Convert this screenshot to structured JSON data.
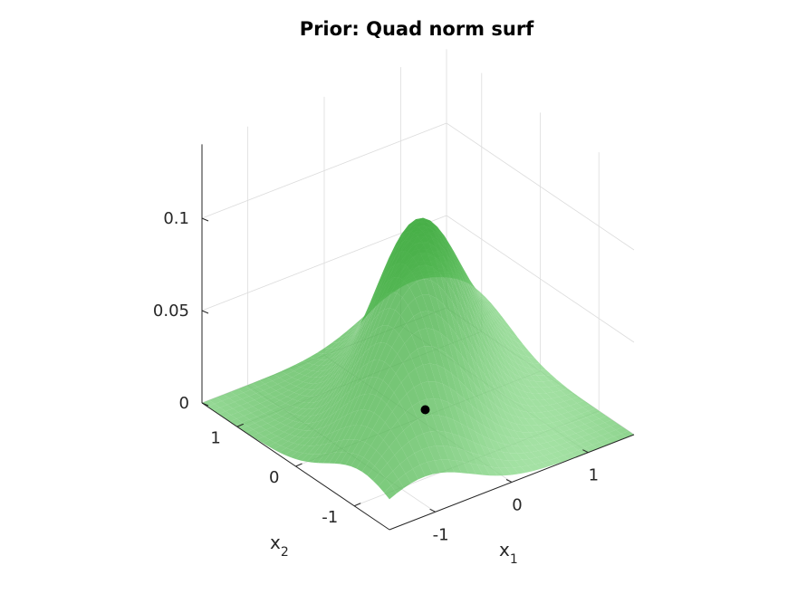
{
  "chart_data": {
    "type": "surface3d",
    "title": "Prior: Quad norm surf",
    "xlabel": "x",
    "xlabel_sub": "1",
    "ylabel": "x",
    "ylabel_sub": "2",
    "zlabel": "",
    "x_ticks": [
      {
        "value": -1,
        "label": "-1"
      },
      {
        "value": 0,
        "label": "0"
      },
      {
        "value": 1,
        "label": "1"
      }
    ],
    "y_ticks": [
      {
        "value": -1,
        "label": "-1"
      },
      {
        "value": 0,
        "label": "0"
      },
      {
        "value": 1,
        "label": "1"
      }
    ],
    "z_ticks": [
      {
        "value": 0,
        "label": "0"
      },
      {
        "value": 0.05,
        "label": "0.05"
      },
      {
        "value": 0.1,
        "label": "0.1"
      }
    ],
    "xlim": [
      -1.6,
      1.6
    ],
    "ylim": [
      -1.6,
      1.6
    ],
    "zlim": [
      0,
      0.14
    ],
    "grid": true,
    "surface_color": "#3cb43c",
    "marker": {
      "x": 0,
      "y": 0,
      "z": 0,
      "color": "#000000"
    },
    "surface": {
      "description_free": true,
      "peak_value": 0.104,
      "shape": "quadratic-norm density with maximum at origin, ridge along x1=x2, falls toward zero at corners"
    }
  }
}
